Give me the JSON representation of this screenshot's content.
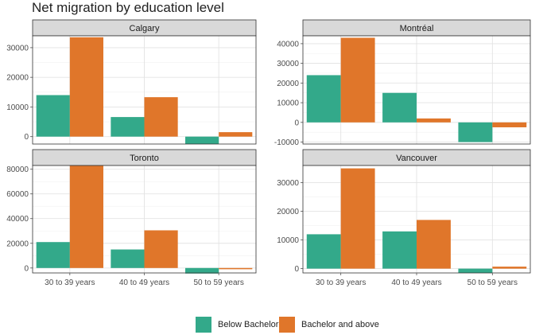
{
  "chart_data": {
    "type": "bar",
    "title": "Net migration by education level",
    "categories": [
      "30 to 39 years",
      "40 to 49 years",
      "50 to 59 years"
    ],
    "legend": {
      "placement": "bottom",
      "items": [
        {
          "name": "Below Bachelor",
          "color": "#33A98A"
        },
        {
          "name": "Bachelor and above",
          "color": "#E0762A"
        }
      ]
    },
    "grid": true,
    "panels": [
      {
        "name": "Calgary",
        "ylim": [
          -2500,
          34000
        ],
        "yticks": [
          0,
          10000,
          20000,
          30000
        ],
        "series": [
          {
            "name": "Below Bachelor",
            "values": [
              14000,
              6600,
              -2500
            ]
          },
          {
            "name": "Bachelor and above",
            "values": [
              33500,
              13300,
              1500
            ]
          }
        ]
      },
      {
        "name": "Montréal",
        "ylim": [
          -11000,
          44000
        ],
        "yticks": [
          -10000,
          0,
          10000,
          20000,
          30000,
          40000
        ],
        "series": [
          {
            "name": "Below Bachelor",
            "values": [
              24000,
              15000,
              -10000
            ]
          },
          {
            "name": "Bachelor and above",
            "values": [
              43000,
              2000,
              -2500
            ]
          }
        ]
      },
      {
        "name": "Toronto",
        "ylim": [
          -4000,
          83000
        ],
        "yticks": [
          0,
          20000,
          40000,
          60000,
          80000
        ],
        "series": [
          {
            "name": "Below Bachelor",
            "values": [
              21000,
              15000,
              -4500
            ]
          },
          {
            "name": "Bachelor and above",
            "values": [
              83000,
              30500,
              -1000
            ]
          }
        ]
      },
      {
        "name": "Vancouver",
        "ylim": [
          -1500,
          36000
        ],
        "yticks": [
          0,
          10000,
          20000,
          30000
        ],
        "series": [
          {
            "name": "Below Bachelor",
            "values": [
              12000,
              13000,
              -1500
            ]
          },
          {
            "name": "Bachelor and above",
            "values": [
              35000,
              17000,
              700
            ]
          }
        ]
      }
    ]
  }
}
